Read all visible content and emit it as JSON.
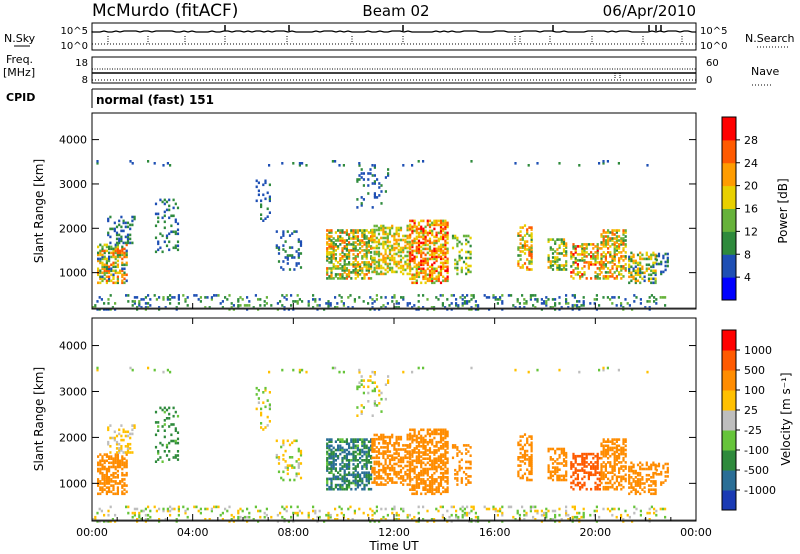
{
  "header": {
    "station": "McMurdo (fitACF)",
    "beam": "Beam 02",
    "date": "06/Apr/2010"
  },
  "status_panels": {
    "nsky_label": "N.Sky",
    "nsky_ticks": [
      "10^5",
      "10^0"
    ],
    "nsearch_label": "N.Search",
    "nsearch_ticks": [
      "10^5",
      "10^0"
    ],
    "freq_label": "Freq.",
    "freq_unit": "[MHz]",
    "freq_ticks": [
      "18",
      "8"
    ],
    "nave_label": "Nave",
    "nave_ticks": [
      "60",
      "0"
    ],
    "cpid_label": "CPID",
    "cpid_value": "normal (fast) 151"
  },
  "chart_data": [
    {
      "type": "heatmap",
      "name": "power-panel",
      "ylabel": "Slant Range [km]",
      "y_ticks": [
        "4000",
        "3000",
        "2000",
        "1000"
      ],
      "ylim": [
        180,
        4600
      ],
      "xlim_hours": [
        0,
        24
      ],
      "colorbar": {
        "label": "Power [dB]",
        "ticks": [
          "28",
          "24",
          "20",
          "16",
          "12",
          "8",
          "4"
        ],
        "colors": [
          "#0000ff",
          "#1e4fb4",
          "#2e8a3c",
          "#66b23a",
          "#e8d000",
          "#ff9c00",
          "#ff5a00",
          "#ff0000"
        ],
        "range": [
          0,
          32
        ]
      }
    },
    {
      "type": "heatmap",
      "name": "velocity-panel",
      "ylabel": "Slant Range [km]",
      "y_ticks": [
        "4000",
        "3000",
        "2000",
        "1000"
      ],
      "ylim": [
        180,
        4600
      ],
      "xlim_hours": [
        0,
        24
      ],
      "colorbar": {
        "label": "Velocity [m s⁻¹]",
        "ticks": [
          "1000",
          "500",
          "100",
          "25",
          "-25",
          "-100",
          "-500",
          "-1000"
        ],
        "colors": [
          "#1a3ab4",
          "#2a6e96",
          "#2e8a3c",
          "#66c43a",
          "#bebebe",
          "#ffc000",
          "#ff8c00",
          "#ff5a00",
          "#ff0000"
        ]
      },
      "xlabel": "Time UT",
      "x_ticks": [
        "00:00",
        "04:00",
        "08:00",
        "12:00",
        "16:00",
        "20:00",
        "00:00"
      ]
    }
  ]
}
